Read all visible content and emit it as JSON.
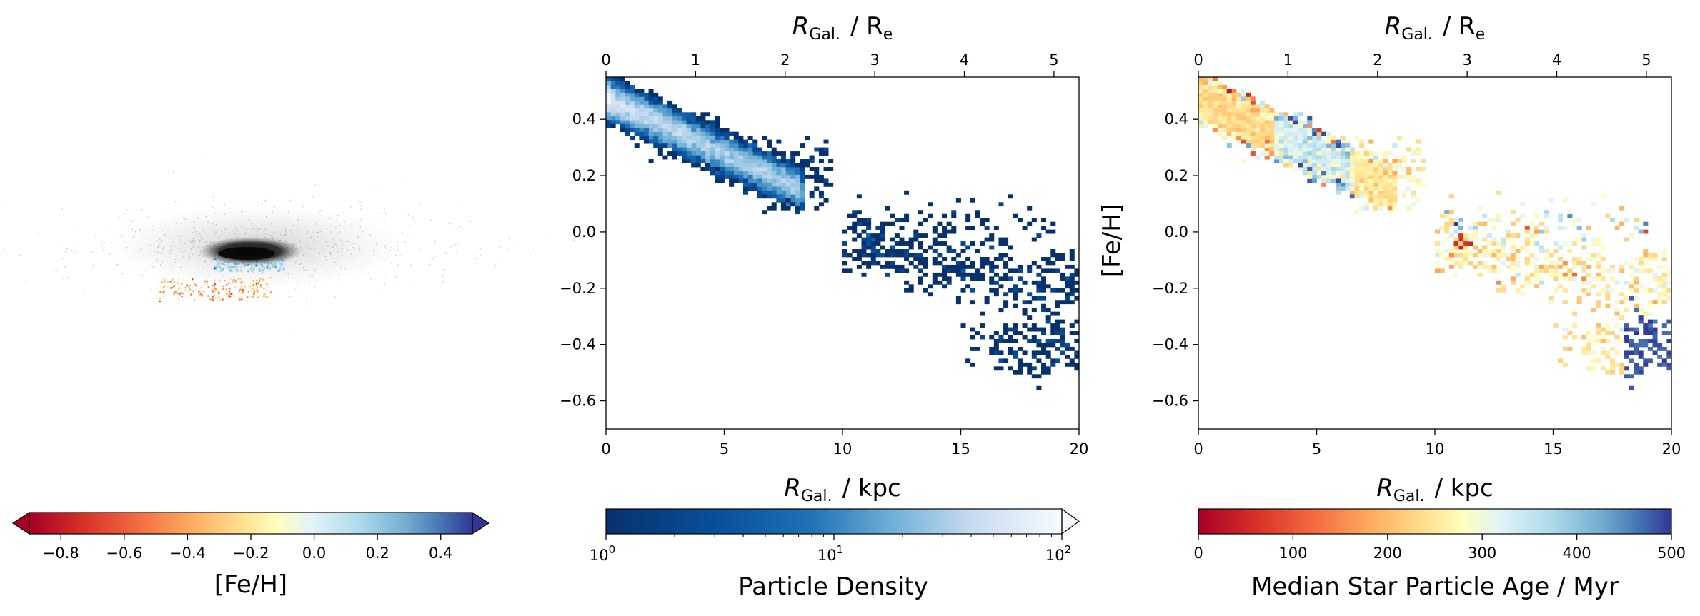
{
  "chart_data": [
    {
      "type": "scatter",
      "panel": "galaxy-image",
      "colorbar": {
        "label": "[Fe/H]",
        "range": [
          -0.9,
          0.5
        ],
        "ticks": [
          "−0.8",
          "−0.6",
          "−0.4",
          "−0.2",
          "0.0",
          "0.2",
          "0.4"
        ],
        "tick_values": [
          -0.8,
          -0.6,
          -0.4,
          -0.2,
          0.0,
          0.2,
          0.4
        ],
        "cmap": "RdYlBu",
        "extend": "both"
      }
    },
    {
      "type": "heatmap",
      "panel": "density",
      "xlabel_main": "R",
      "xlabel_sub": "Gal.",
      "xlabel_unit": "/ kpc",
      "xlabel_top_unit": "/ R",
      "xlabel_top_unit_sub": "e",
      "xlim": [
        0,
        20
      ],
      "ylim": [
        -0.7,
        0.55
      ],
      "x_ticks": [
        "0",
        "5",
        "10",
        "15",
        "20"
      ],
      "x_tick_values": [
        0,
        5,
        10,
        15,
        20
      ],
      "top_ticks": [
        "0",
        "1",
        "2",
        "3",
        "4",
        "5"
      ],
      "top_tick_values": [
        0,
        1,
        2,
        3,
        4,
        5
      ],
      "top_xlim": [
        0,
        5.28
      ],
      "y_ticks": [
        "−0.6",
        "−0.4",
        "−0.2",
        "0.0",
        "0.2",
        "0.4"
      ],
      "y_tick_values": [
        -0.6,
        -0.4,
        -0.2,
        0.0,
        0.2,
        0.4
      ],
      "colorbar": {
        "label": "Particle Density",
        "scale": "log",
        "range": [
          1,
          100
        ],
        "ticks": [
          "10",
          "10",
          "10"
        ],
        "tick_exponents": [
          "0",
          "1",
          "2"
        ],
        "cmap": "Blues_r",
        "extend": "max"
      }
    },
    {
      "type": "heatmap",
      "panel": "age",
      "ylabel": "[Fe/H]",
      "xlim": [
        0,
        20
      ],
      "ylim": [
        -0.7,
        0.55
      ],
      "colorbar": {
        "label": "Median Star Particle Age / Myr",
        "range": [
          0,
          500
        ],
        "ticks": [
          "0",
          "100",
          "200",
          "300",
          "400",
          "500"
        ],
        "tick_values": [
          0,
          100,
          200,
          300,
          400,
          500
        ],
        "cmap": "RdYlBu"
      }
    }
  ]
}
